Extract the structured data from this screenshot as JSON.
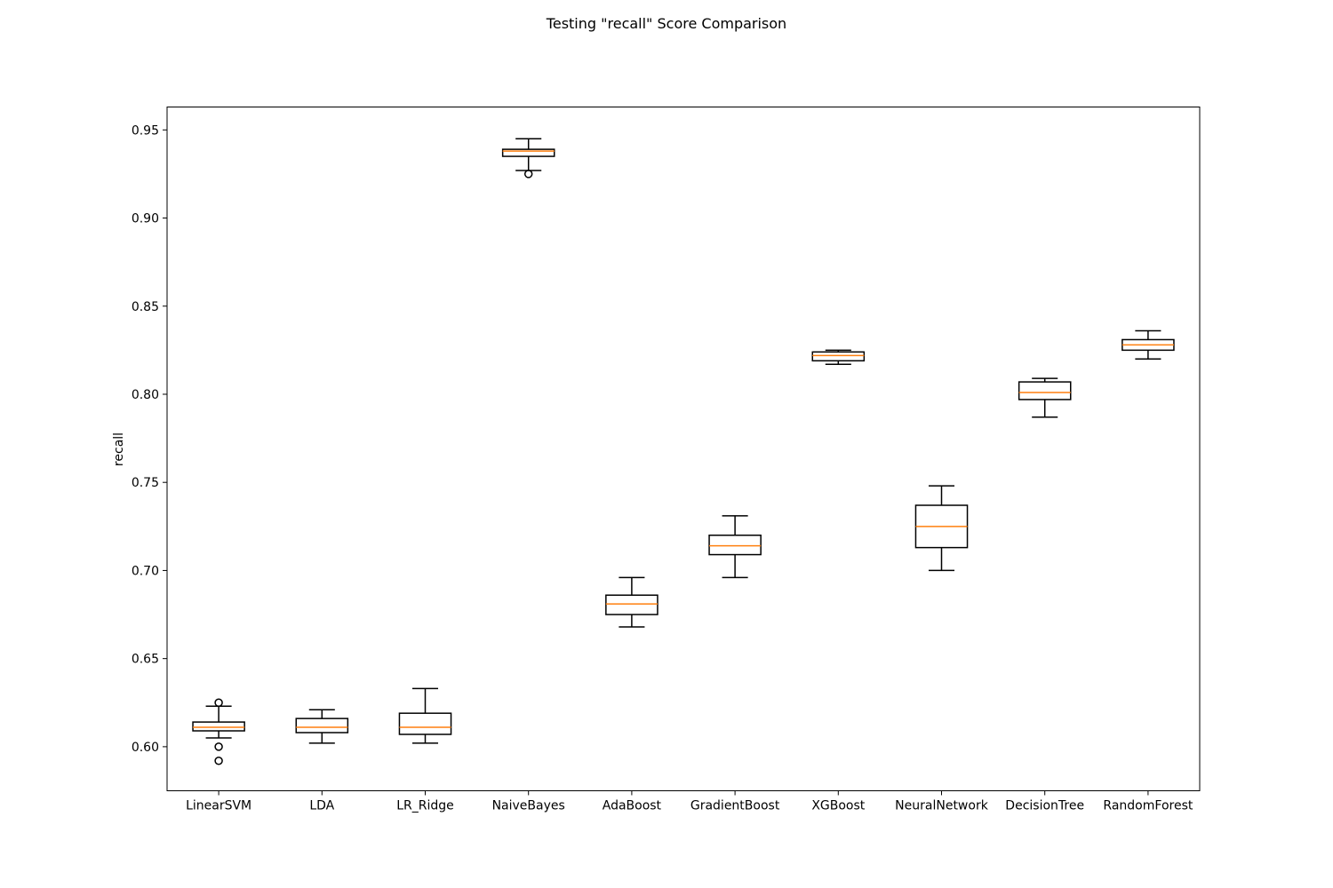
{
  "chart_data": {
    "type": "box",
    "title": "Testing \"recall\" Score Comparison",
    "xlabel": "",
    "ylabel": "recall",
    "ylim": [
      0.575,
      0.963
    ],
    "yticks": [
      "0.60",
      "0.65",
      "0.70",
      "0.75",
      "0.80",
      "0.85",
      "0.90",
      "0.95"
    ],
    "grid": false,
    "colors": {
      "box": "#000000",
      "median": "#ff7f0e"
    },
    "categories": [
      "LinearSVM",
      "LDA",
      "LR_Ridge",
      "NaiveBayes",
      "AdaBoost",
      "GradientBoost",
      "XGBoost",
      "NeuralNetwork",
      "DecisionTree",
      "RandomForest"
    ],
    "boxes": [
      {
        "whisker_low": 0.605,
        "q1": 0.609,
        "median": 0.611,
        "q3": 0.614,
        "whisker_high": 0.623,
        "outliers": [
          0.625,
          0.6,
          0.592
        ]
      },
      {
        "whisker_low": 0.602,
        "q1": 0.608,
        "median": 0.611,
        "q3": 0.616,
        "whisker_high": 0.621,
        "outliers": []
      },
      {
        "whisker_low": 0.602,
        "q1": 0.607,
        "median": 0.611,
        "q3": 0.619,
        "whisker_high": 0.633,
        "outliers": []
      },
      {
        "whisker_low": 0.927,
        "q1": 0.935,
        "median": 0.938,
        "q3": 0.939,
        "whisker_high": 0.945,
        "outliers": [
          0.925
        ]
      },
      {
        "whisker_low": 0.668,
        "q1": 0.675,
        "median": 0.681,
        "q3": 0.686,
        "whisker_high": 0.696,
        "outliers": []
      },
      {
        "whisker_low": 0.696,
        "q1": 0.709,
        "median": 0.714,
        "q3": 0.72,
        "whisker_high": 0.731,
        "outliers": []
      },
      {
        "whisker_low": 0.817,
        "q1": 0.819,
        "median": 0.822,
        "q3": 0.824,
        "whisker_high": 0.825,
        "outliers": []
      },
      {
        "whisker_low": 0.7,
        "q1": 0.713,
        "median": 0.725,
        "q3": 0.737,
        "whisker_high": 0.748,
        "outliers": []
      },
      {
        "whisker_low": 0.787,
        "q1": 0.797,
        "median": 0.801,
        "q3": 0.807,
        "whisker_high": 0.809,
        "outliers": []
      },
      {
        "whisker_low": 0.82,
        "q1": 0.825,
        "median": 0.828,
        "q3": 0.831,
        "whisker_high": 0.836,
        "outliers": []
      }
    ]
  }
}
